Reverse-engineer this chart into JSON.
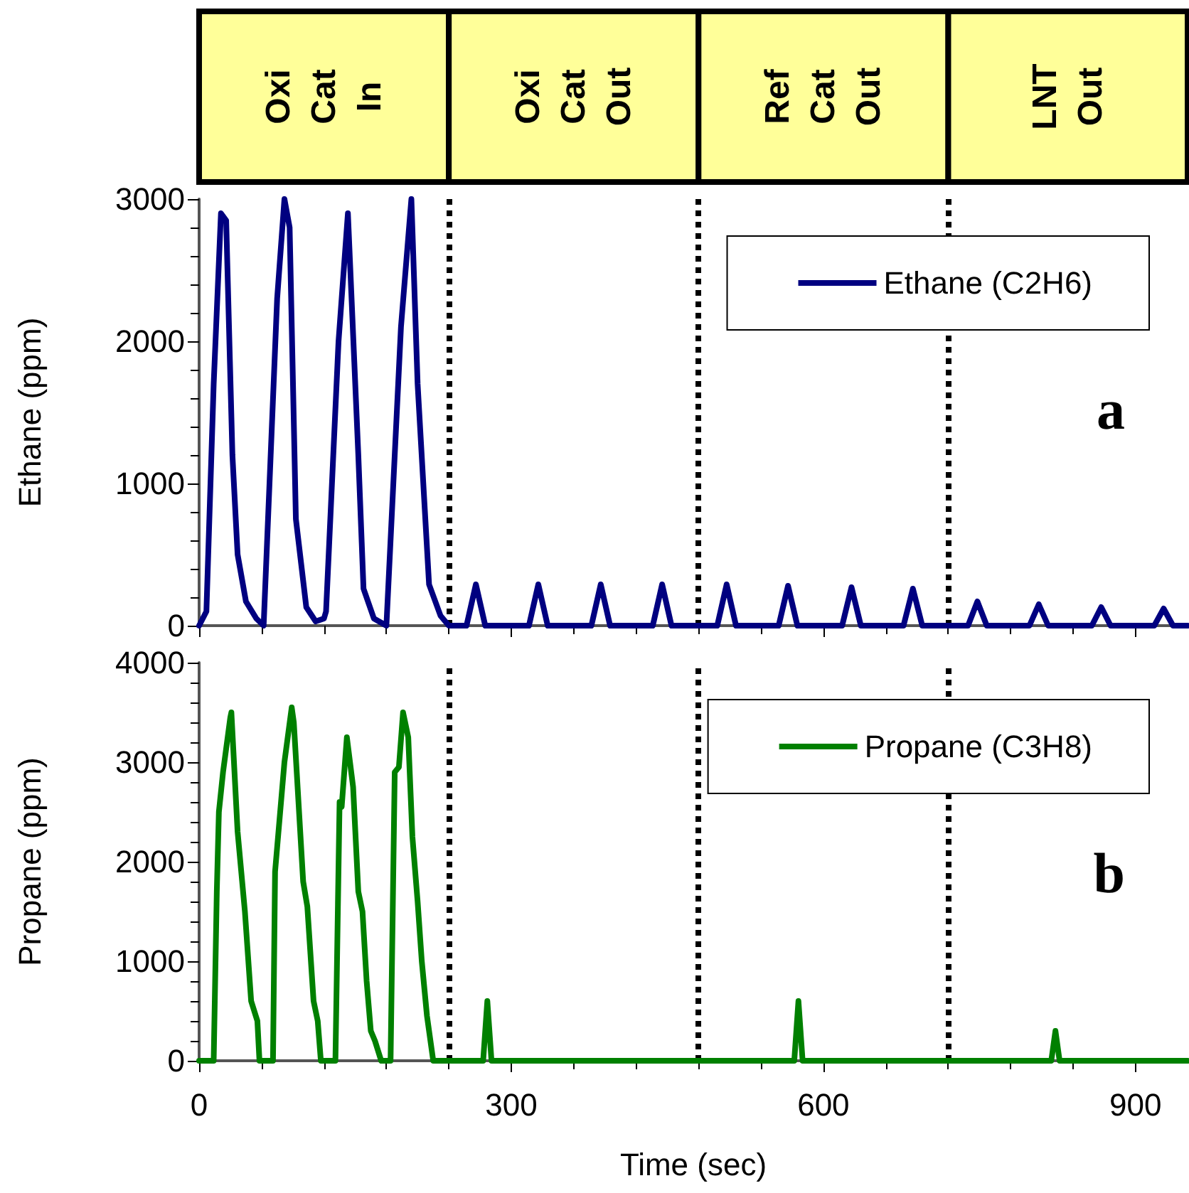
{
  "chart_data": [
    {
      "type": "line",
      "ylabel": "Ethane (ppm)",
      "annotations": [
        "Oxi Cat In",
        "Oxi Cat Out",
        "Ref Cat Out",
        "LNT Out",
        "a"
      ],
      "legend": "top right",
      "tick_labels": "y",
      "xlim": [
        0,
        950
      ],
      "xticks": [
        0,
        300,
        600,
        900
      ],
      "ylim": [
        0,
        3000
      ],
      "yticks": [
        0,
        1000,
        2000,
        3000
      ],
      "series": [
        {
          "name": "Ethane (C2H6)",
          "color": "#000080",
          "x": [
            0,
            7,
            14,
            21,
            26,
            32,
            37,
            45,
            55,
            62,
            75,
            82,
            87,
            93,
            103,
            112,
            120,
            122,
            134,
            143,
            153,
            158,
            168,
            180,
            194,
            204,
            210,
            221,
            232,
            240,
            257,
            266,
            275,
            317,
            326,
            335,
            377,
            386,
            395,
            436,
            445,
            454,
            498,
            507,
            516,
            557,
            566,
            575,
            618,
            627,
            636,
            677,
            686,
            695,
            739,
            748,
            757,
            798,
            807,
            816,
            858,
            867,
            876,
            918,
            927,
            936,
            950
          ],
          "values": [
            0,
            100,
            1700,
            2900,
            2850,
            1200,
            500,
            170,
            50,
            0,
            2300,
            3000,
            2800,
            750,
            130,
            30,
            50,
            100,
            2000,
            2900,
            1200,
            260,
            50,
            0,
            2100,
            3000,
            1700,
            290,
            70,
            0,
            0,
            290,
            0,
            0,
            290,
            0,
            0,
            290,
            0,
            0,
            290,
            0,
            0,
            290,
            0,
            0,
            280,
            0,
            0,
            270,
            0,
            0,
            260,
            0,
            0,
            170,
            0,
            0,
            150,
            0,
            0,
            130,
            0,
            0,
            120,
            0,
            0
          ]
        }
      ],
      "ref_lines": [
        {
          "axis": "x",
          "value": 240,
          "color": "#000000",
          "line_style": "dotted"
        },
        {
          "axis": "x",
          "value": 480,
          "color": "#000000",
          "line_style": "dotted"
        },
        {
          "axis": "x",
          "value": 720,
          "color": "#000000",
          "line_style": "dotted"
        }
      ]
    },
    {
      "type": "line",
      "xlabel": "Time (sec)",
      "ylabel": "Propane (ppm)",
      "annotations": [
        "b"
      ],
      "legend": "top right",
      "xlim": [
        0,
        950
      ],
      "xticks": [
        0,
        300,
        600,
        900
      ],
      "ylim": [
        0,
        4000
      ],
      "yticks": [
        0,
        1000,
        2000,
        3000,
        4000
      ],
      "series": [
        {
          "name": "Propane (C3H8)",
          "color": "#008000",
          "x": [
            0,
            14,
            17,
            19,
            23,
            30,
            31,
            37,
            44,
            50,
            56,
            58,
            71,
            73,
            82,
            89,
            91,
            100,
            104,
            110,
            114,
            117,
            131,
            135,
            137,
            142,
            148,
            153,
            157,
            161,
            165,
            169,
            175,
            184,
            188,
            192,
            196,
            201,
            205,
            210,
            214,
            219,
            225,
            273,
            277,
            281,
            572,
            576,
            580,
            819,
            823,
            827,
            950
          ],
          "values": [
            0,
            0,
            1700,
            2500,
            2900,
            3450,
            3500,
            2300,
            1500,
            600,
            400,
            0,
            0,
            1900,
            3000,
            3550,
            3400,
            1800,
            1550,
            600,
            400,
            0,
            0,
            2600,
            2550,
            3250,
            2750,
            1700,
            1500,
            800,
            300,
            200,
            0,
            0,
            2900,
            2950,
            3500,
            3250,
            2250,
            1600,
            1000,
            450,
            0,
            0,
            600,
            0,
            0,
            600,
            0,
            0,
            300,
            0,
            0
          ]
        }
      ],
      "ref_lines": [
        {
          "axis": "x",
          "value": 240,
          "color": "#000000",
          "line_style": "dotted"
        },
        {
          "axis": "x",
          "value": 480,
          "color": "#000000",
          "line_style": "dotted"
        },
        {
          "axis": "x",
          "value": 720,
          "color": "#000000",
          "line_style": "dotted"
        }
      ]
    }
  ]
}
